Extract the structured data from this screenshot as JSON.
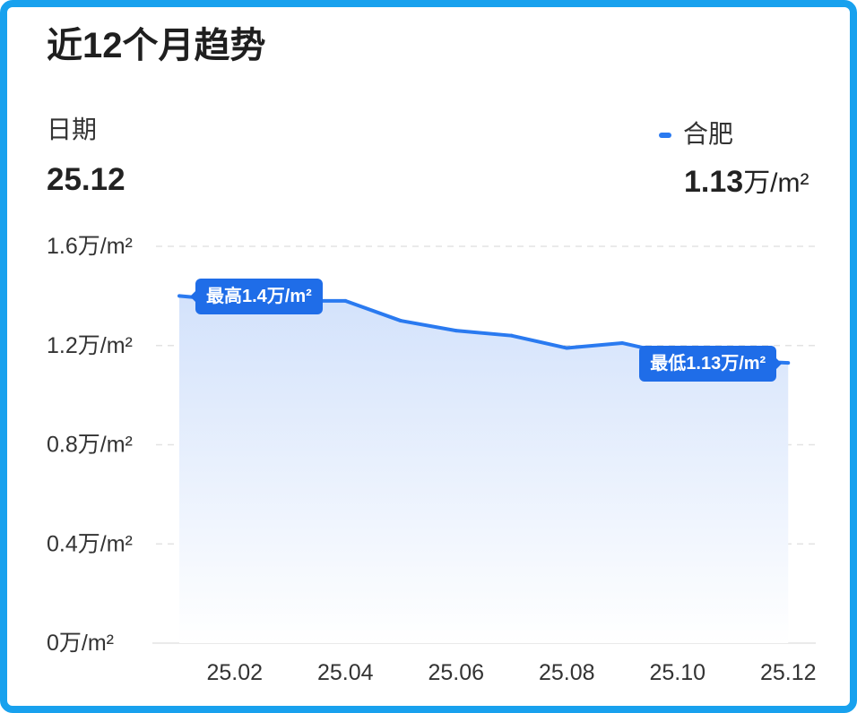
{
  "header": {
    "title": "近12个月趋势",
    "date_label": "日期",
    "date_value": "25.12",
    "current_value": "1.13",
    "current_unit": "万/m²"
  },
  "colors": {
    "frame": "#18a1ee",
    "line": "#2a7af0",
    "annotation": "#1f6de8",
    "area_top": "#d3e2fb",
    "area_bottom": "#ffffff",
    "grid": "#e3e3e3",
    "text": "#333333"
  },
  "chart_data": {
    "type": "line",
    "x": [
      "25.01",
      "25.02",
      "25.03",
      "25.04",
      "25.05",
      "25.06",
      "25.07",
      "25.08",
      "25.09",
      "25.10",
      "25.11",
      "25.12"
    ],
    "series": [
      {
        "name": "合肥",
        "values": [
          1.4,
          1.38,
          1.38,
          1.38,
          1.3,
          1.26,
          1.24,
          1.19,
          1.21,
          1.16,
          1.14,
          1.13
        ]
      }
    ],
    "xticks": [
      "25.02",
      "25.04",
      "25.06",
      "25.08",
      "25.10",
      "25.12"
    ],
    "yticks": [
      {
        "value": 1.6,
        "label": "1.6万/m²"
      },
      {
        "value": 1.2,
        "label": "1.2万/m²"
      },
      {
        "value": 0.8,
        "label": "0.8万/m²"
      },
      {
        "value": 0.4,
        "label": "0.4万/m²"
      },
      {
        "value": 0,
        "label": "0万/m²"
      }
    ],
    "ylim": [
      0,
      1.6
    ],
    "grid": true,
    "legend": "top-right",
    "annotations": [
      {
        "x": "25.01",
        "label": "最高1.4万/m²"
      },
      {
        "x": "25.12",
        "label": "最低1.13万/m²"
      }
    ]
  }
}
